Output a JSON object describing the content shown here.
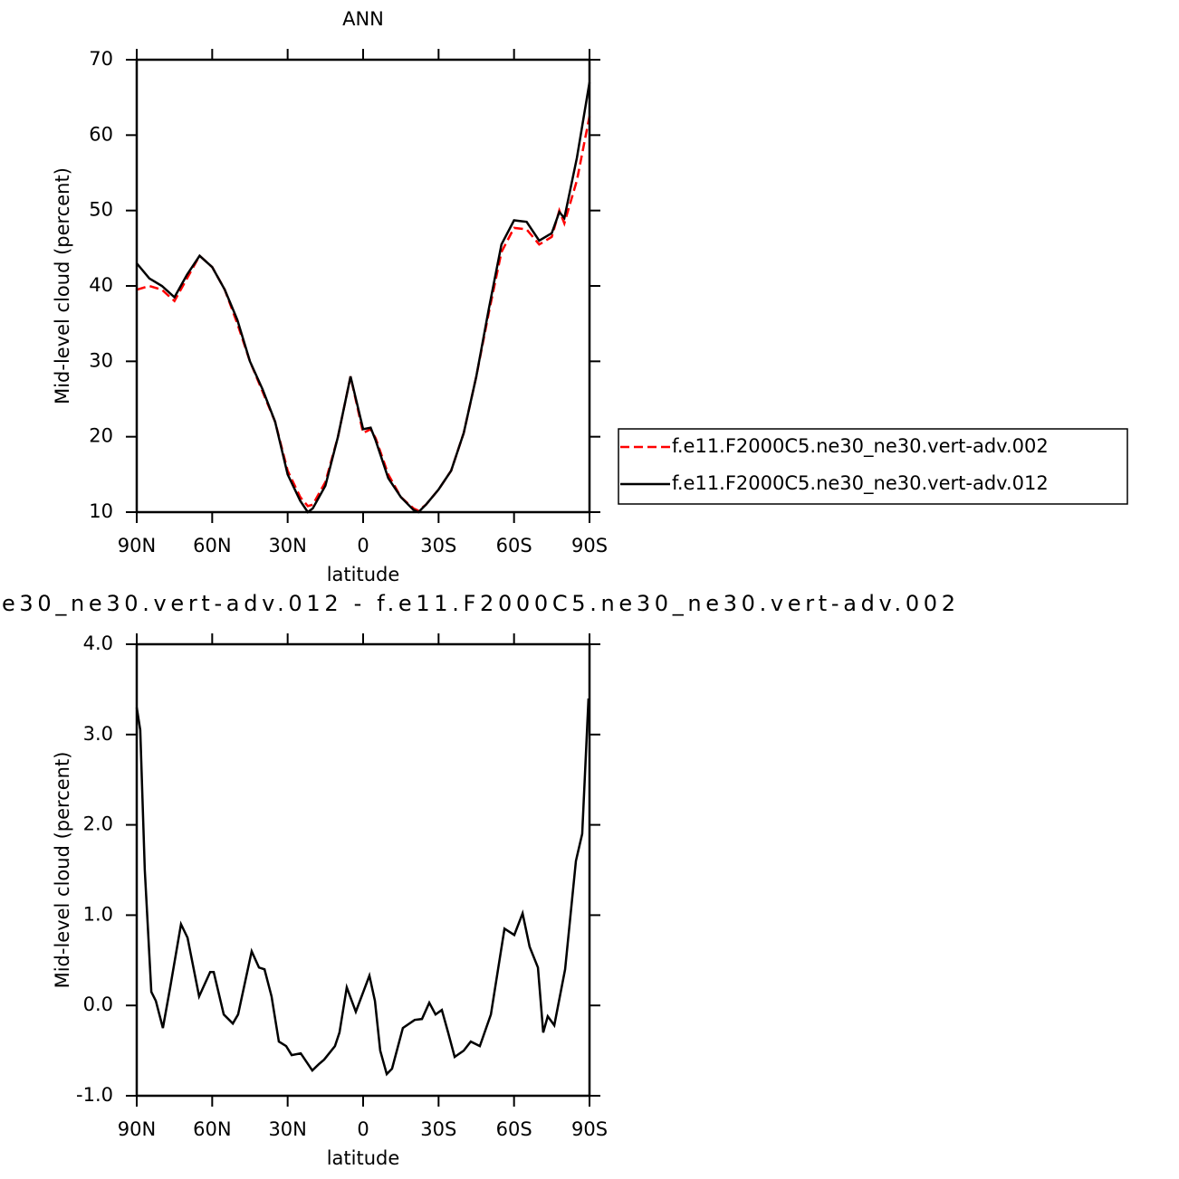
{
  "chart_data": [
    {
      "type": "line",
      "title": "ANN",
      "xlabel": "latitude",
      "ylabel": "Mid-level cloud (percent)",
      "x": [
        90,
        85,
        80,
        75,
        70,
        65,
        60,
        55,
        50,
        45,
        40,
        35,
        30,
        25,
        22,
        20,
        15,
        10,
        5,
        0,
        -3,
        -5,
        -10,
        -15,
        -20,
        -22,
        -25,
        -30,
        -35,
        -40,
        -45,
        -50,
        -55,
        -60,
        -65,
        -70,
        -75,
        -78,
        -80,
        -85,
        -90
      ],
      "series": [
        {
          "name": "f.e11.F2000C5.ne30_ne30.vert-adv.002",
          "color": "#ff0000",
          "style": "dashed",
          "values": [
            39.5,
            40,
            39.5,
            38,
            41,
            44,
            42.5,
            39.5,
            35,
            30,
            26,
            22,
            15.5,
            12,
            10.8,
            11,
            14,
            20,
            28,
            20.5,
            21,
            19.8,
            15,
            12,
            10.5,
            10.2,
            11,
            13,
            15.5,
            20.5,
            28,
            36.5,
            44.5,
            47.7,
            47.5,
            45.5,
            46.5,
            50,
            48.3,
            54,
            62.5
          ]
        },
        {
          "name": "f.e11.F2000C5.ne30_ne30.vert-adv.012",
          "color": "#000000",
          "style": "solid",
          "values": [
            43,
            41,
            40,
            38.5,
            41.5,
            44,
            42.5,
            39.5,
            35.5,
            30,
            26.3,
            22,
            15,
            11.5,
            10,
            10.5,
            13.5,
            20,
            28,
            21,
            21.2,
            19.5,
            14.5,
            12,
            10.3,
            10,
            11,
            13,
            15.5,
            20.5,
            28,
            37,
            45.5,
            48.7,
            48.5,
            46,
            47,
            49.8,
            49,
            57,
            67
          ]
        }
      ],
      "xlim": [
        90,
        -90
      ],
      "ylim": [
        10,
        70
      ],
      "xticks": [
        {
          "value": 90,
          "label": "90N"
        },
        {
          "value": 60,
          "label": "60N"
        },
        {
          "value": 30,
          "label": "30N"
        },
        0,
        {
          "value": -30,
          "label": "30S"
        },
        {
          "value": -60,
          "label": "60S"
        },
        {
          "value": -90,
          "label": "90S"
        }
      ],
      "yticks": [
        10,
        20,
        30,
        40,
        50,
        60,
        70
      ],
      "legend": "right"
    },
    {
      "type": "line",
      "title": "e30_ne30.vert-adv.012 - f.e11.F2000C5.ne30_ne30.vert-adv.002",
      "xlabel": "latitude",
      "ylabel": "Mid-level cloud (percent)",
      "x": [
        90,
        88.6,
        86.8,
        84.2,
        82.4,
        79.6,
        76.7,
        72.4,
        69.8,
        65.2,
        60.8,
        59.4,
        55.4,
        51.8,
        49.7,
        44.3,
        41.4,
        39.2,
        36.4,
        33.5,
        30.6,
        28.4,
        24.8,
        20.2,
        17.6,
        15.5,
        11.2,
        9.4,
        6.5,
        2.9,
        -2.5,
        -4.7,
        -6.8,
        -9.4,
        -11.5,
        -15.8,
        -20.5,
        -23.4,
        -26.3,
        -28.8,
        -31.3,
        -33.8,
        -36.4,
        -40,
        -42.8,
        -46.4,
        -50.8,
        -56.2,
        -60.1,
        -63.4,
        -66.2,
        -69.5,
        -71.6,
        -73.4,
        -76,
        -80.3,
        -84.6,
        -87.1,
        -89.6
      ],
      "series": [
        {
          "color": "#000000",
          "style": "solid",
          "values": [
            3.3,
            3.05,
            1.5,
            0.15,
            0.05,
            -0.25,
            0.2,
            0.9,
            0.75,
            0.1,
            0.37,
            0.37,
            -0.1,
            -0.2,
            -0.1,
            0.6,
            0.42,
            0.4,
            0.1,
            -0.4,
            -0.45,
            -0.55,
            -0.53,
            -0.72,
            -0.65,
            -0.6,
            -0.45,
            -0.3,
            0.2,
            -0.07,
            0.33,
            0.05,
            -0.5,
            -0.76,
            -0.7,
            -0.25,
            -0.16,
            -0.15,
            0.03,
            -0.1,
            -0.05,
            -0.3,
            -0.57,
            -0.5,
            -0.4,
            -0.45,
            -0.1,
            0.85,
            0.78,
            1.02,
            0.65,
            0.42,
            -0.3,
            -0.12,
            -0.22,
            0.4,
            1.6,
            1.9,
            3.4
          ]
        }
      ],
      "xlim": [
        90,
        -90
      ],
      "ylim": [
        -1,
        4
      ],
      "xticks": [
        {
          "value": 90,
          "label": "90N"
        },
        {
          "value": 60,
          "label": "60N"
        },
        {
          "value": 30,
          "label": "30N"
        },
        0,
        {
          "value": -30,
          "label": "30S"
        },
        {
          "value": -60,
          "label": "60S"
        },
        {
          "value": -90,
          "label": "90S"
        }
      ],
      "yticks": [
        {
          "value": -1,
          "label": "-1.0"
        },
        {
          "value": 0,
          "label": "0.0"
        },
        {
          "value": 1,
          "label": "1.0"
        },
        {
          "value": 2,
          "label": "2.0"
        },
        {
          "value": 3,
          "label": "3.0"
        },
        {
          "value": 4,
          "label": "4.0"
        }
      ]
    }
  ]
}
